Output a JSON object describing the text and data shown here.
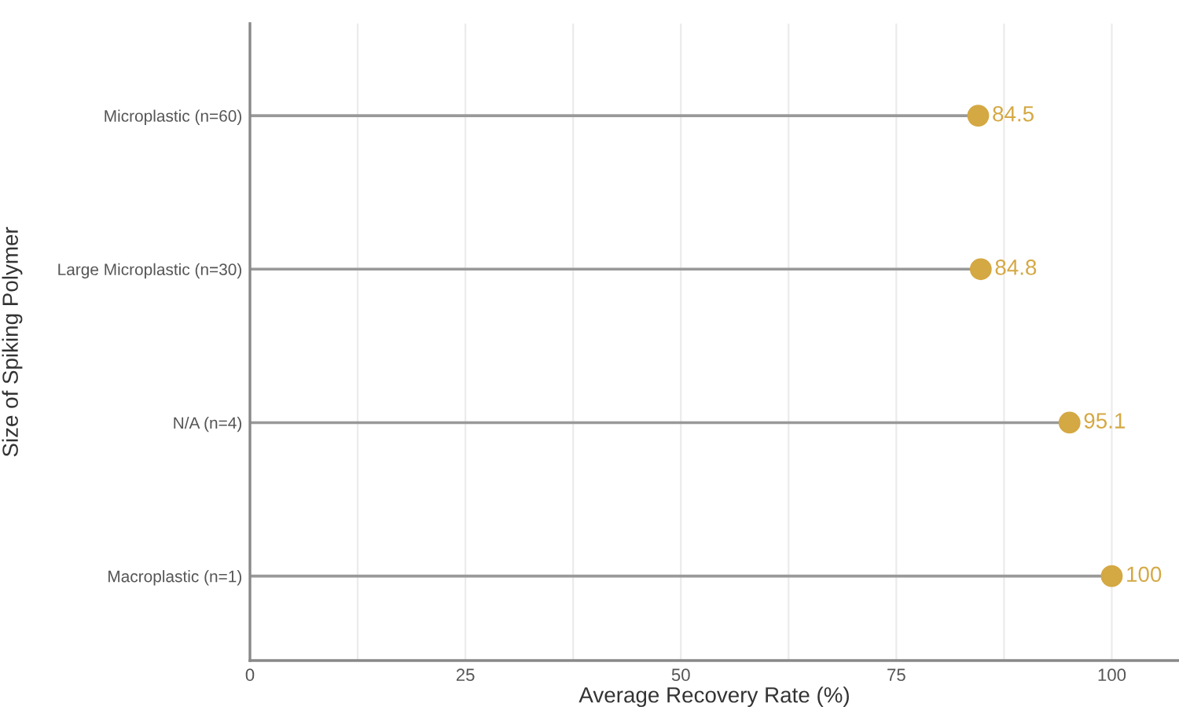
{
  "chart_data": {
    "type": "lollipop",
    "orientation": "horizontal",
    "xlabel": "Average Recovery Rate (%)",
    "ylabel": "Size of Spiking Polymer",
    "categories": [
      "Microplastic (n=60)",
      "Large Microplastic (n=30)",
      "N/A (n=4)",
      "Macroplastic (n=1)"
    ],
    "values": [
      84.5,
      84.8,
      95.1,
      100
    ],
    "color": "#d4a843",
    "xlim": [
      0,
      107.8
    ],
    "xticks": [
      0,
      {
        "value": 12.5,
        "label": null
      },
      25,
      {
        "value": 37.5,
        "label": null
      },
      50,
      {
        "value": 62.5,
        "label": null
      },
      75,
      {
        "value": 87.5,
        "label": null
      },
      100
    ],
    "grid": "x",
    "marker": "circle",
    "data_labels": true,
    "legend": false
  }
}
